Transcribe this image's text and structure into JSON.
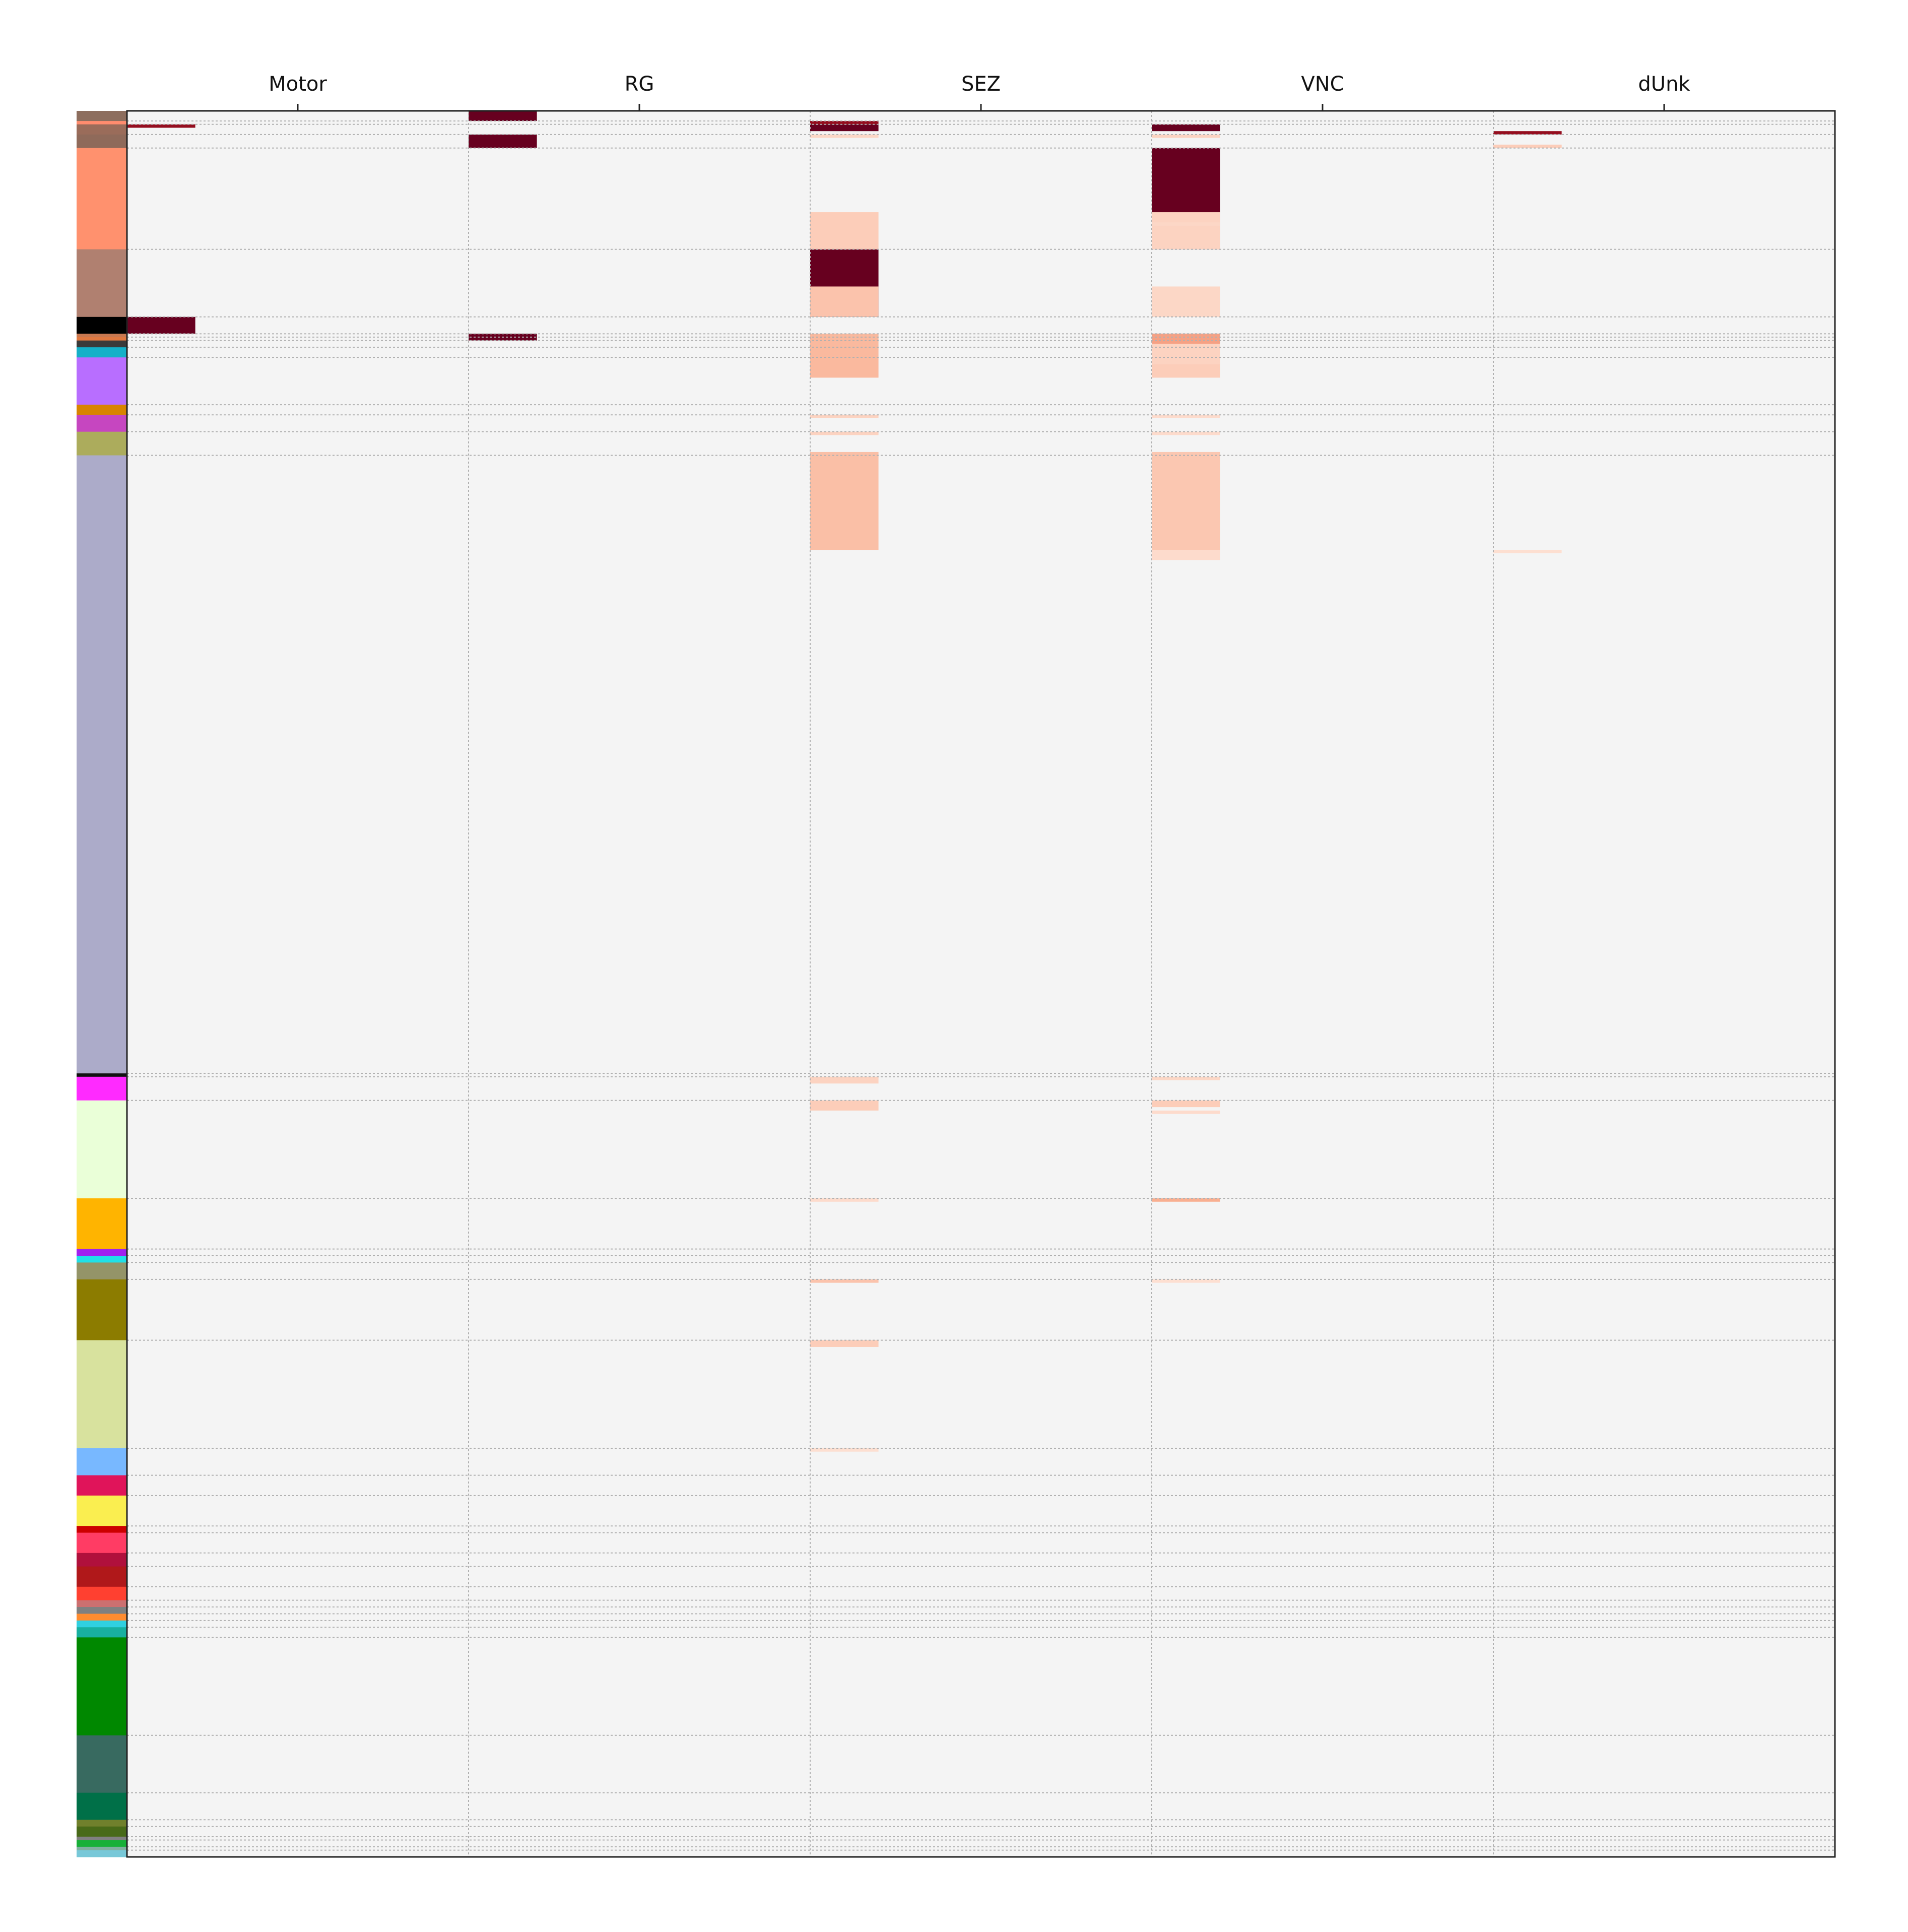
{
  "chart_data": {
    "type": "heatmap",
    "title": "",
    "xlabel": "",
    "ylabel": "",
    "x_categories": [
      "Motor",
      "RG",
      "SEZ",
      "VNC",
      "dUnk"
    ],
    "x_label_position": "top",
    "grid": true,
    "colormap": "Reds",
    "background_color": "#f4f4f4",
    "row_groups": [
      {
        "size": 3,
        "color": "#8d6e5e"
      },
      {
        "size": 1,
        "color": "#ff8c6e"
      },
      {
        "size": 3,
        "color": "#9a6c5a"
      },
      {
        "size": 4,
        "color": "#8f6a5a"
      },
      {
        "size": 30,
        "color": "#ff916e"
      },
      {
        "size": 20,
        "color": "#b08070"
      },
      {
        "size": 5,
        "color": "#000000"
      },
      {
        "size": 1,
        "color": "#c87850"
      },
      {
        "size": 1,
        "color": "#e07840"
      },
      {
        "size": 2,
        "color": "#3a3a3a"
      },
      {
        "size": 3,
        "color": "#14b0c8"
      },
      {
        "size": 14,
        "color": "#b86eff"
      },
      {
        "size": 3,
        "color": "#d88400"
      },
      {
        "size": 5,
        "color": "#c646c0"
      },
      {
        "size": 7,
        "color": "#acac5c"
      },
      {
        "size": 183,
        "color": "#acabc9"
      },
      {
        "size": 1,
        "color": "#111111"
      },
      {
        "size": 7,
        "color": "#ff2aff"
      },
      {
        "size": 29,
        "color": "#eaffd8"
      },
      {
        "size": 15,
        "color": "#ffb400"
      },
      {
        "size": 2,
        "color": "#a020f0"
      },
      {
        "size": 2,
        "color": "#20e0e8"
      },
      {
        "size": 5,
        "color": "#949468"
      },
      {
        "size": 18,
        "color": "#8c7c00"
      },
      {
        "size": 32,
        "color": "#d8e29e"
      },
      {
        "size": 8,
        "color": "#78b8ff"
      },
      {
        "size": 6,
        "color": "#e0145a"
      },
      {
        "size": 9,
        "color": "#faee50"
      },
      {
        "size": 2,
        "color": "#cc0000"
      },
      {
        "size": 6,
        "color": "#ff3c64"
      },
      {
        "size": 4,
        "color": "#b0103c"
      },
      {
        "size": 6,
        "color": "#b0181a"
      },
      {
        "size": 4,
        "color": "#ff4030"
      },
      {
        "size": 2,
        "color": "#cc7070"
      },
      {
        "size": 2,
        "color": "#808080"
      },
      {
        "size": 2,
        "color": "#ff8c30"
      },
      {
        "size": 2,
        "color": "#30d0e0"
      },
      {
        "size": 3,
        "color": "#18b0a0"
      },
      {
        "size": 29,
        "color": "#008800"
      },
      {
        "size": 17,
        "color": "#386a60"
      },
      {
        "size": 8,
        "color": "#007048"
      },
      {
        "size": 2,
        "color": "#70802c"
      },
      {
        "size": 3,
        "color": "#486a18"
      },
      {
        "size": 1,
        "color": "#808080"
      },
      {
        "size": 2,
        "color": "#18b038"
      },
      {
        "size": 1,
        "color": "#80b0a0"
      },
      {
        "size": 2,
        "color": "#78c8d8"
      }
    ],
    "cells": [
      {
        "rows": [
          0,
          3
        ],
        "cols": [
          1,
          2
        ],
        "value": 1.0
      },
      {
        "rows": [
          7,
          11
        ],
        "cols": [
          1,
          2
        ],
        "value": 1.0
      },
      {
        "rows": [
          4,
          5
        ],
        "cols": [
          0,
          1
        ],
        "value": 0.9
      },
      {
        "rows": [
          3,
          4
        ],
        "cols": [
          2,
          3
        ],
        "value": 0.9
      },
      {
        "rows": [
          4,
          6
        ],
        "cols": [
          2,
          3
        ],
        "value": 1.0
      },
      {
        "rows": [
          4,
          6
        ],
        "cols": [
          3,
          4
        ],
        "value": 1.0
      },
      {
        "rows": [
          6,
          7
        ],
        "cols": [
          4,
          5
        ],
        "value": 0.9
      },
      {
        "rows": [
          11,
          41
        ],
        "cols": [
          3,
          4
        ],
        "value": 1.0
      },
      {
        "rows": [
          41,
          61
        ],
        "cols": [
          2,
          3
        ],
        "value": 1.0
      },
      {
        "rows": [
          61,
          66
        ],
        "cols": [
          0,
          1
        ],
        "value": 1.0
      },
      {
        "rows": [
          66,
          67
        ],
        "cols": [
          3,
          4
        ],
        "value": 0.9
      },
      {
        "rows": [
          66,
          68
        ],
        "cols": [
          1,
          2
        ],
        "value": 1.0
      },
      {
        "rows": [
          10,
          11
        ],
        "cols": [
          4,
          5
        ],
        "value": 0.15
      },
      {
        "rows": [
          7,
          8
        ],
        "cols": [
          3,
          4
        ],
        "value": 0.12
      },
      {
        "rows": [
          30,
          41
        ],
        "cols": [
          3,
          4
        ],
        "value": 0.12
      },
      {
        "rows": [
          52,
          61
        ],
        "cols": [
          3,
          4
        ],
        "value": 0.1
      },
      {
        "rows": [
          66,
          69
        ],
        "cols": [
          3,
          4
        ],
        "value": 0.35
      },
      {
        "rows": [
          69,
          75
        ],
        "cols": [
          3,
          4
        ],
        "value": 0.12
      },
      {
        "rows": [
          75,
          79
        ],
        "cols": [
          3,
          4
        ],
        "value": 0.15
      },
      {
        "rows": [
          90,
          91
        ],
        "cols": [
          3,
          4
        ],
        "value": 0.08
      },
      {
        "rows": [
          95,
          96
        ],
        "cols": [
          3,
          4
        ],
        "value": 0.08
      },
      {
        "rows": [
          101,
          130
        ],
        "cols": [
          3,
          4
        ],
        "value": 0.18
      },
      {
        "rows": [
          130,
          131
        ],
        "cols": [
          4,
          5
        ],
        "value": 0.06
      },
      {
        "rows": [
          286,
          287
        ],
        "cols": [
          3,
          4
        ],
        "value": 0.1
      },
      {
        "rows": [
          293,
          295
        ],
        "cols": [
          3,
          4
        ],
        "value": 0.15
      },
      {
        "rows": [
          322,
          323
        ],
        "cols": [
          3,
          4
        ],
        "value": 0.3
      },
      {
        "rows": [
          346,
          347
        ],
        "cols": [
          3,
          4
        ],
        "value": 0.06
      },
      {
        "rows": [
          7,
          8
        ],
        "cols": [
          2,
          3
        ],
        "value": 0.1
      },
      {
        "rows": [
          30,
          41
        ],
        "cols": [
          2,
          3
        ],
        "value": 0.15
      },
      {
        "rows": [
          33,
          34
        ],
        "cols": [
          3,
          4
        ],
        "value": 0.1
      },
      {
        "rows": [
          52,
          61
        ],
        "cols": [
          2,
          3
        ],
        "value": 0.2
      },
      {
        "rows": [
          66,
          79
        ],
        "cols": [
          2,
          3
        ],
        "value": 0.25
      },
      {
        "rows": [
          90,
          91
        ],
        "cols": [
          2,
          3
        ],
        "value": 0.12
      },
      {
        "rows": [
          95,
          96
        ],
        "cols": [
          2,
          3
        ],
        "value": 0.12
      },
      {
        "rows": [
          101,
          130
        ],
        "cols": [
          2,
          3
        ],
        "value": 0.22
      },
      {
        "rows": [
          130,
          133
        ],
        "cols": [
          3,
          4
        ],
        "value": 0.08
      },
      {
        "rows": [
          286,
          288
        ],
        "cols": [
          2,
          3
        ],
        "value": 0.12
      },
      {
        "rows": [
          293,
          296
        ],
        "cols": [
          2,
          3
        ],
        "value": 0.15
      },
      {
        "rows": [
          296,
          297
        ],
        "cols": [
          3,
          4
        ],
        "value": 0.08
      },
      {
        "rows": [
          322,
          323
        ],
        "cols": [
          2,
          3
        ],
        "value": 0.08
      },
      {
        "rows": [
          346,
          347
        ],
        "cols": [
          2,
          3
        ],
        "value": 0.2
      },
      {
        "rows": [
          364,
          366
        ],
        "cols": [
          2,
          3
        ],
        "value": 0.15
      },
      {
        "rows": [
          396,
          397
        ],
        "cols": [
          2,
          3
        ],
        "value": 0.06
      }
    ]
  }
}
